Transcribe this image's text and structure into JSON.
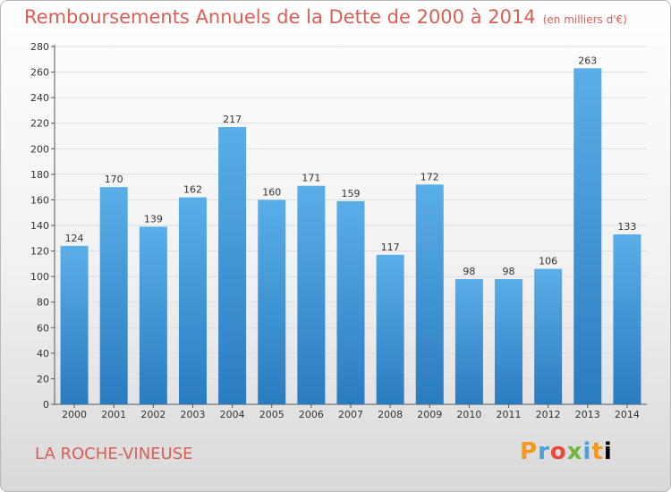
{
  "header": {
    "title": "Remboursements Annuels de la Dette de 2000 à 2014",
    "unit": "(en milliers d'€)"
  },
  "footer": {
    "commune": "LA ROCHE-VINEUSE",
    "logo_letters": [
      "P",
      "r",
      "o",
      "x",
      "i",
      "t",
      "i"
    ]
  },
  "colors": {
    "bar_top": "#5aaee8",
    "bar_bottom": "#2a7cc0",
    "title": "#d95f55",
    "grid": "#dddddd"
  },
  "chart_data": {
    "type": "bar",
    "categories": [
      "2000",
      "2001",
      "2002",
      "2003",
      "2004",
      "2005",
      "2006",
      "2007",
      "2008",
      "2009",
      "2010",
      "2011",
      "2012",
      "2013",
      "2014"
    ],
    "values": [
      124,
      170,
      139,
      162,
      217,
      160,
      171,
      159,
      117,
      172,
      98,
      98,
      106,
      263,
      133
    ],
    "title": "Remboursements Annuels de la Dette de 2000 à 2014",
    "xlabel": "",
    "ylabel": "",
    "ylim": [
      0,
      280
    ],
    "yticks": [
      0,
      20,
      40,
      60,
      80,
      100,
      120,
      140,
      160,
      180,
      200,
      220,
      240,
      260,
      280
    ],
    "grid": true,
    "legend": "none"
  }
}
